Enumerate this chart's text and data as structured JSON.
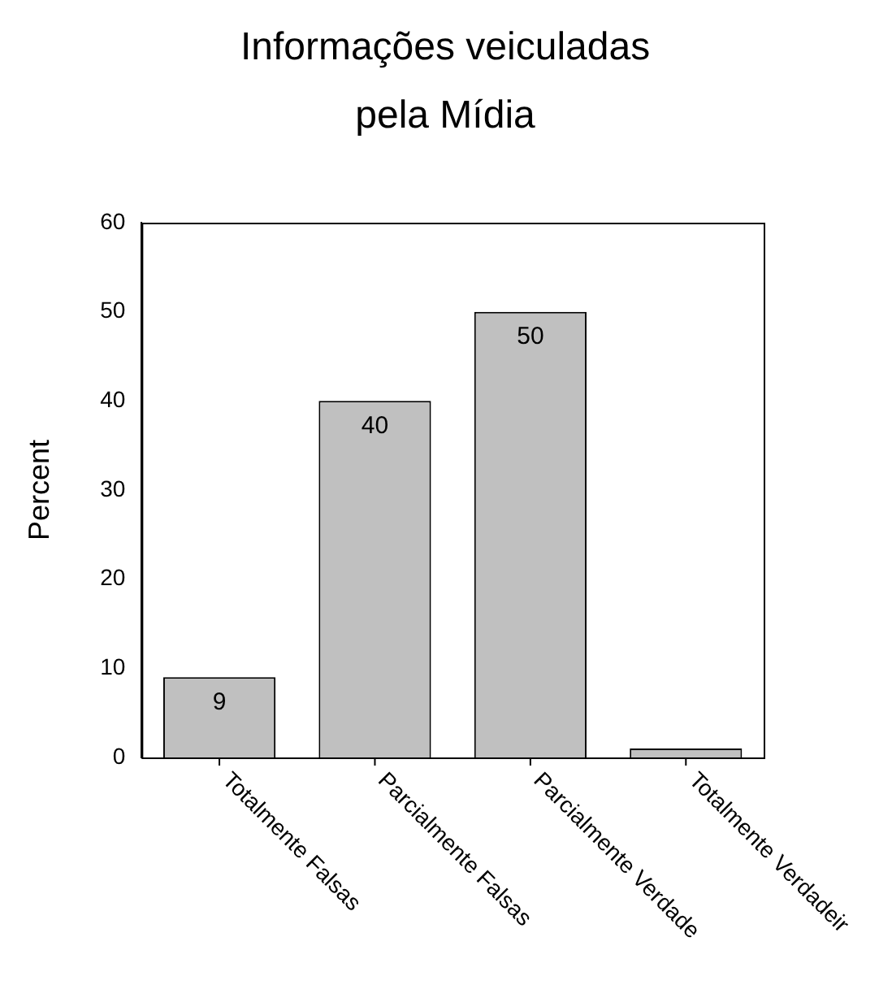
{
  "chart_data": {
    "type": "bar",
    "title": "Informações veiculadas pela Mídia",
    "ylabel": "Percent",
    "categories": [
      "Totalmente Falsas",
      "Parcialmente Falsas",
      "Parcialmente Verdade",
      "Totalmente Verdadeir"
    ],
    "values": [
      9,
      40,
      50,
      1
    ],
    "value_labels": [
      "9",
      "40",
      "50",
      null
    ],
    "color": "#c0c0c0",
    "ylim": [
      0,
      60
    ],
    "yticks": [
      0,
      10,
      20,
      30,
      40,
      50,
      60
    ]
  }
}
